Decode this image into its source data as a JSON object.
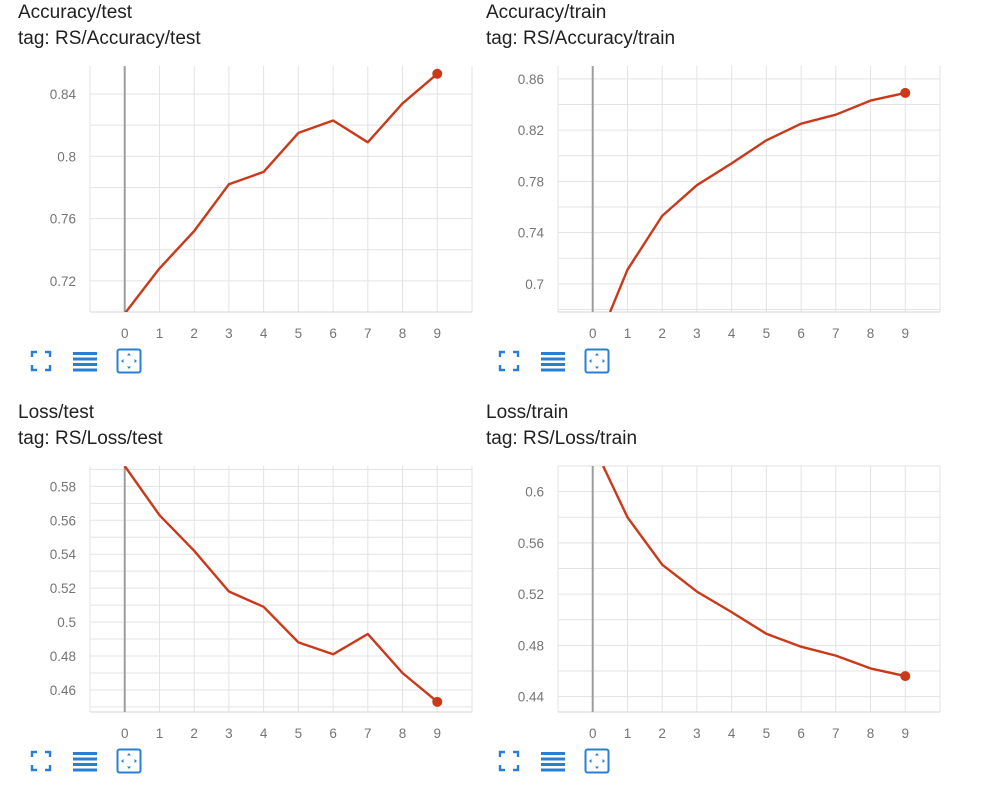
{
  "colors": {
    "series": "#c9391a",
    "grid": "#e3e3e3",
    "zero_axis": "#9e9e9e",
    "icon": "#2a7fd4"
  },
  "toolbar_icons": [
    "expand-icon",
    "lines-icon",
    "fit-domain-icon"
  ],
  "chart_data": [
    {
      "type": "line",
      "title": "Accuracy/test",
      "tag": "tag: RS/Accuracy/test",
      "x": [
        0,
        1,
        2,
        3,
        4,
        5,
        6,
        7,
        8,
        9
      ],
      "series": [
        {
          "values": [
            0.699,
            0.728,
            0.752,
            0.782,
            0.79,
            0.815,
            0.823,
            0.809,
            0.834,
            0.853
          ]
        }
      ],
      "xlim": [
        -1,
        10
      ],
      "ylim": [
        0.7,
        0.858
      ],
      "xticks": [
        0,
        1,
        2,
        3,
        4,
        5,
        6,
        7,
        8,
        9
      ],
      "yticks": [
        0.72,
        0.76,
        0.8,
        0.84
      ],
      "ytick_labels": [
        "0.72",
        "0.76",
        "0.8",
        "0.84"
      ],
      "grid": true
    },
    {
      "type": "line",
      "title": "Accuracy/train",
      "tag": "tag: RS/Accuracy/train",
      "x": [
        0.5,
        1,
        2,
        3,
        4,
        5,
        6,
        7,
        8,
        9
      ],
      "series": [
        {
          "values": [
            0.678,
            0.711,
            0.753,
            0.777,
            0.794,
            0.812,
            0.825,
            0.832,
            0.843,
            0.849
          ]
        }
      ],
      "xlim": [
        -1,
        10
      ],
      "ylim": [
        0.678,
        0.87
      ],
      "xticks": [
        0,
        1,
        2,
        3,
        4,
        5,
        6,
        7,
        8,
        9
      ],
      "yticks": [
        0.7,
        0.74,
        0.78,
        0.82,
        0.86
      ],
      "ytick_labels": [
        "0.7",
        "0.74",
        "0.78",
        "0.82",
        "0.86"
      ],
      "grid": true
    },
    {
      "type": "line",
      "title": "Loss/test",
      "tag": "tag: RS/Loss/test",
      "x": [
        0,
        1,
        2,
        3,
        4,
        5,
        6,
        7,
        8,
        9
      ],
      "series": [
        {
          "values": [
            0.592,
            0.563,
            0.542,
            0.518,
            0.509,
            0.488,
            0.481,
            0.493,
            0.47,
            0.453
          ]
        }
      ],
      "xlim": [
        -1,
        10
      ],
      "ylim": [
        0.447,
        0.592
      ],
      "xticks": [
        0,
        1,
        2,
        3,
        4,
        5,
        6,
        7,
        8,
        9
      ],
      "yticks": [
        0.46,
        0.48,
        0.5,
        0.52,
        0.54,
        0.56,
        0.58
      ],
      "ytick_labels": [
        "0.46",
        "0.48",
        "0.5",
        "0.52",
        "0.54",
        "0.56",
        "0.58"
      ],
      "grid": true
    },
    {
      "type": "line",
      "title": "Loss/train",
      "tag": "tag: RS/Loss/train",
      "x": [
        0.3,
        1,
        2,
        3,
        4,
        5,
        6,
        7,
        8,
        9
      ],
      "series": [
        {
          "values": [
            0.62,
            0.58,
            0.543,
            0.522,
            0.506,
            0.489,
            0.479,
            0.472,
            0.462,
            0.456
          ]
        }
      ],
      "xlim": [
        -1,
        10
      ],
      "ylim": [
        0.428,
        0.62
      ],
      "xticks": [
        0,
        1,
        2,
        3,
        4,
        5,
        6,
        7,
        8,
        9
      ],
      "yticks": [
        0.44,
        0.48,
        0.52,
        0.56,
        0.6
      ],
      "ytick_labels": [
        "0.44",
        "0.48",
        "0.52",
        "0.56",
        "0.6"
      ],
      "grid": true
    }
  ]
}
